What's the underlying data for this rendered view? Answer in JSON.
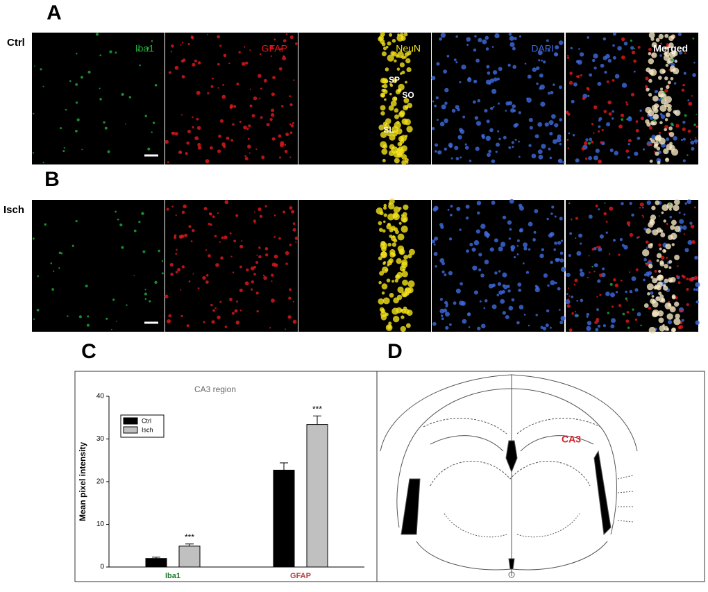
{
  "panels": {
    "A": {
      "letter": "A",
      "row_label": "Ctrl"
    },
    "B": {
      "letter": "B",
      "row_label": "Isch"
    },
    "channels": [
      {
        "label": "Iba1",
        "color": "#1fae3a"
      },
      {
        "label": "GFAP",
        "color": "#e5191c"
      },
      {
        "label": "NeuN",
        "color": "#f2e21a"
      },
      {
        "label": "DAPI",
        "color": "#3f6be0"
      },
      {
        "label": "Merged",
        "color": "#ffffff"
      }
    ],
    "layers": [
      "SP",
      "SO",
      "SL"
    ],
    "C": {
      "letter": "C"
    },
    "D": {
      "letter": "D",
      "region_label": "CA3"
    }
  },
  "chart_data": {
    "type": "bar",
    "title": "CA3 region",
    "y_label": "Mean pixel intensity",
    "categories": [
      "Iba1",
      "GFAP"
    ],
    "category_colors": [
      "#1e7a2a",
      "#b5403f"
    ],
    "series": [
      {
        "name": "Ctrl",
        "color": "#000000",
        "values": [
          2,
          22.7
        ],
        "errors": [
          0.3,
          1.7
        ]
      },
      {
        "name": "Isch",
        "color": "#c0c0c0",
        "values": [
          4.9,
          33.4
        ],
        "errors": [
          0.5,
          2.0
        ]
      }
    ],
    "annotations": [
      "***",
      "***"
    ],
    "ylim": [
      0,
      40
    ],
    "yticks": [
      0,
      10,
      20,
      30,
      40
    ],
    "grid": false,
    "legend": "upper-left"
  }
}
